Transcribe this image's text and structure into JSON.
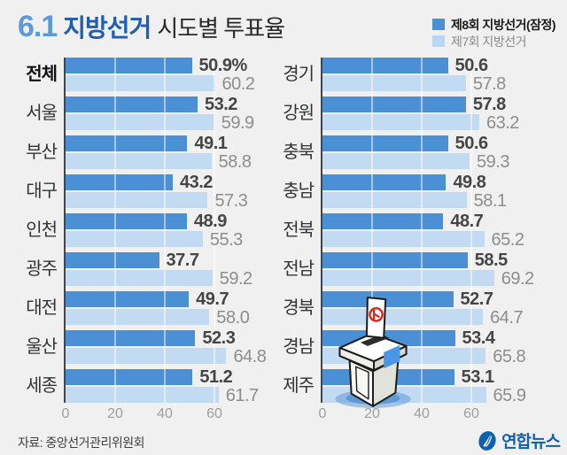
{
  "header": {
    "title_prefix": "6.1",
    "title_main": "지방선거",
    "title_sub": "시도별 투표율",
    "title_prefix_color": "#5b9ad7",
    "title_main_color": "#1e5fb0"
  },
  "legend": {
    "items": [
      {
        "label": "제8회 지방선거(잠정)",
        "color": "#4b90d4"
      },
      {
        "label": "제7회 지방선거",
        "color": "#bcd6f0"
      }
    ]
  },
  "colors": {
    "background": "#f0f0f1",
    "bar_8th": "#4b90d4",
    "bar_7th": "#c2dbf3",
    "axis": "#454545",
    "yonhap_blue": "#1061ad"
  },
  "chart_data": {
    "type": "bar",
    "orientation": "horizontal",
    "title": "6.1 지방선거 시도별 투표율",
    "unit": "%",
    "x_ticks": [
      0,
      20,
      40,
      60
    ],
    "xlim": [
      0,
      75
    ],
    "series_names": [
      "제8회 지방선거(잠정)",
      "제7회 지방선거"
    ],
    "panels": [
      {
        "rows": [
          {
            "label": "전체",
            "bold": true,
            "v8": 50.9,
            "v8_text": "50.9%",
            "v7": 60.2,
            "v7_text": "60.2"
          },
          {
            "label": "서울",
            "v8": 53.2,
            "v8_text": "53.2",
            "v7": 59.9,
            "v7_text": "59.9"
          },
          {
            "label": "부산",
            "v8": 49.1,
            "v8_text": "49.1",
            "v7": 58.8,
            "v7_text": "58.8"
          },
          {
            "label": "대구",
            "v8": 43.2,
            "v8_text": "43.2",
            "v7": 57.3,
            "v7_text": "57.3"
          },
          {
            "label": "인천",
            "v8": 48.9,
            "v8_text": "48.9",
            "v7": 55.3,
            "v7_text": "55.3"
          },
          {
            "label": "광주",
            "v8": 37.7,
            "v8_text": "37.7",
            "v7": 59.2,
            "v7_text": "59.2"
          },
          {
            "label": "대전",
            "v8": 49.7,
            "v8_text": "49.7",
            "v7": 58.0,
            "v7_text": "58.0"
          },
          {
            "label": "울산",
            "v8": 52.3,
            "v8_text": "52.3",
            "v7": 64.8,
            "v7_text": "64.8"
          },
          {
            "label": "세종",
            "v8": 51.2,
            "v8_text": "51.2",
            "v7": 61.7,
            "v7_text": "61.7"
          }
        ]
      },
      {
        "rows": [
          {
            "label": "경기",
            "v8": 50.6,
            "v8_text": "50.6",
            "v7": 57.8,
            "v7_text": "57.8"
          },
          {
            "label": "강원",
            "v8": 57.8,
            "v8_text": "57.8",
            "v7": 63.2,
            "v7_text": "63.2"
          },
          {
            "label": "충북",
            "v8": 50.6,
            "v8_text": "50.6",
            "v7": 59.3,
            "v7_text": "59.3"
          },
          {
            "label": "충남",
            "v8": 49.8,
            "v8_text": "49.8",
            "v7": 58.1,
            "v7_text": "58.1"
          },
          {
            "label": "전북",
            "v8": 48.7,
            "v8_text": "48.7",
            "v7": 65.2,
            "v7_text": "65.2"
          },
          {
            "label": "전남",
            "v8": 58.5,
            "v8_text": "58.5",
            "v7": 69.2,
            "v7_text": "69.2"
          },
          {
            "label": "경북",
            "v8": 52.7,
            "v8_text": "52.7",
            "v7": 64.7,
            "v7_text": "64.7"
          },
          {
            "label": "경남",
            "v8": 53.4,
            "v8_text": "53.4",
            "v7": 65.8,
            "v7_text": "65.8"
          },
          {
            "label": "제주",
            "v8": 53.1,
            "v8_text": "53.1",
            "v7": 65.9,
            "v7_text": "65.9"
          }
        ]
      }
    ]
  },
  "footer": {
    "source": "자료: 중앙선거관리위원회",
    "logo_text": "연합뉴스"
  }
}
